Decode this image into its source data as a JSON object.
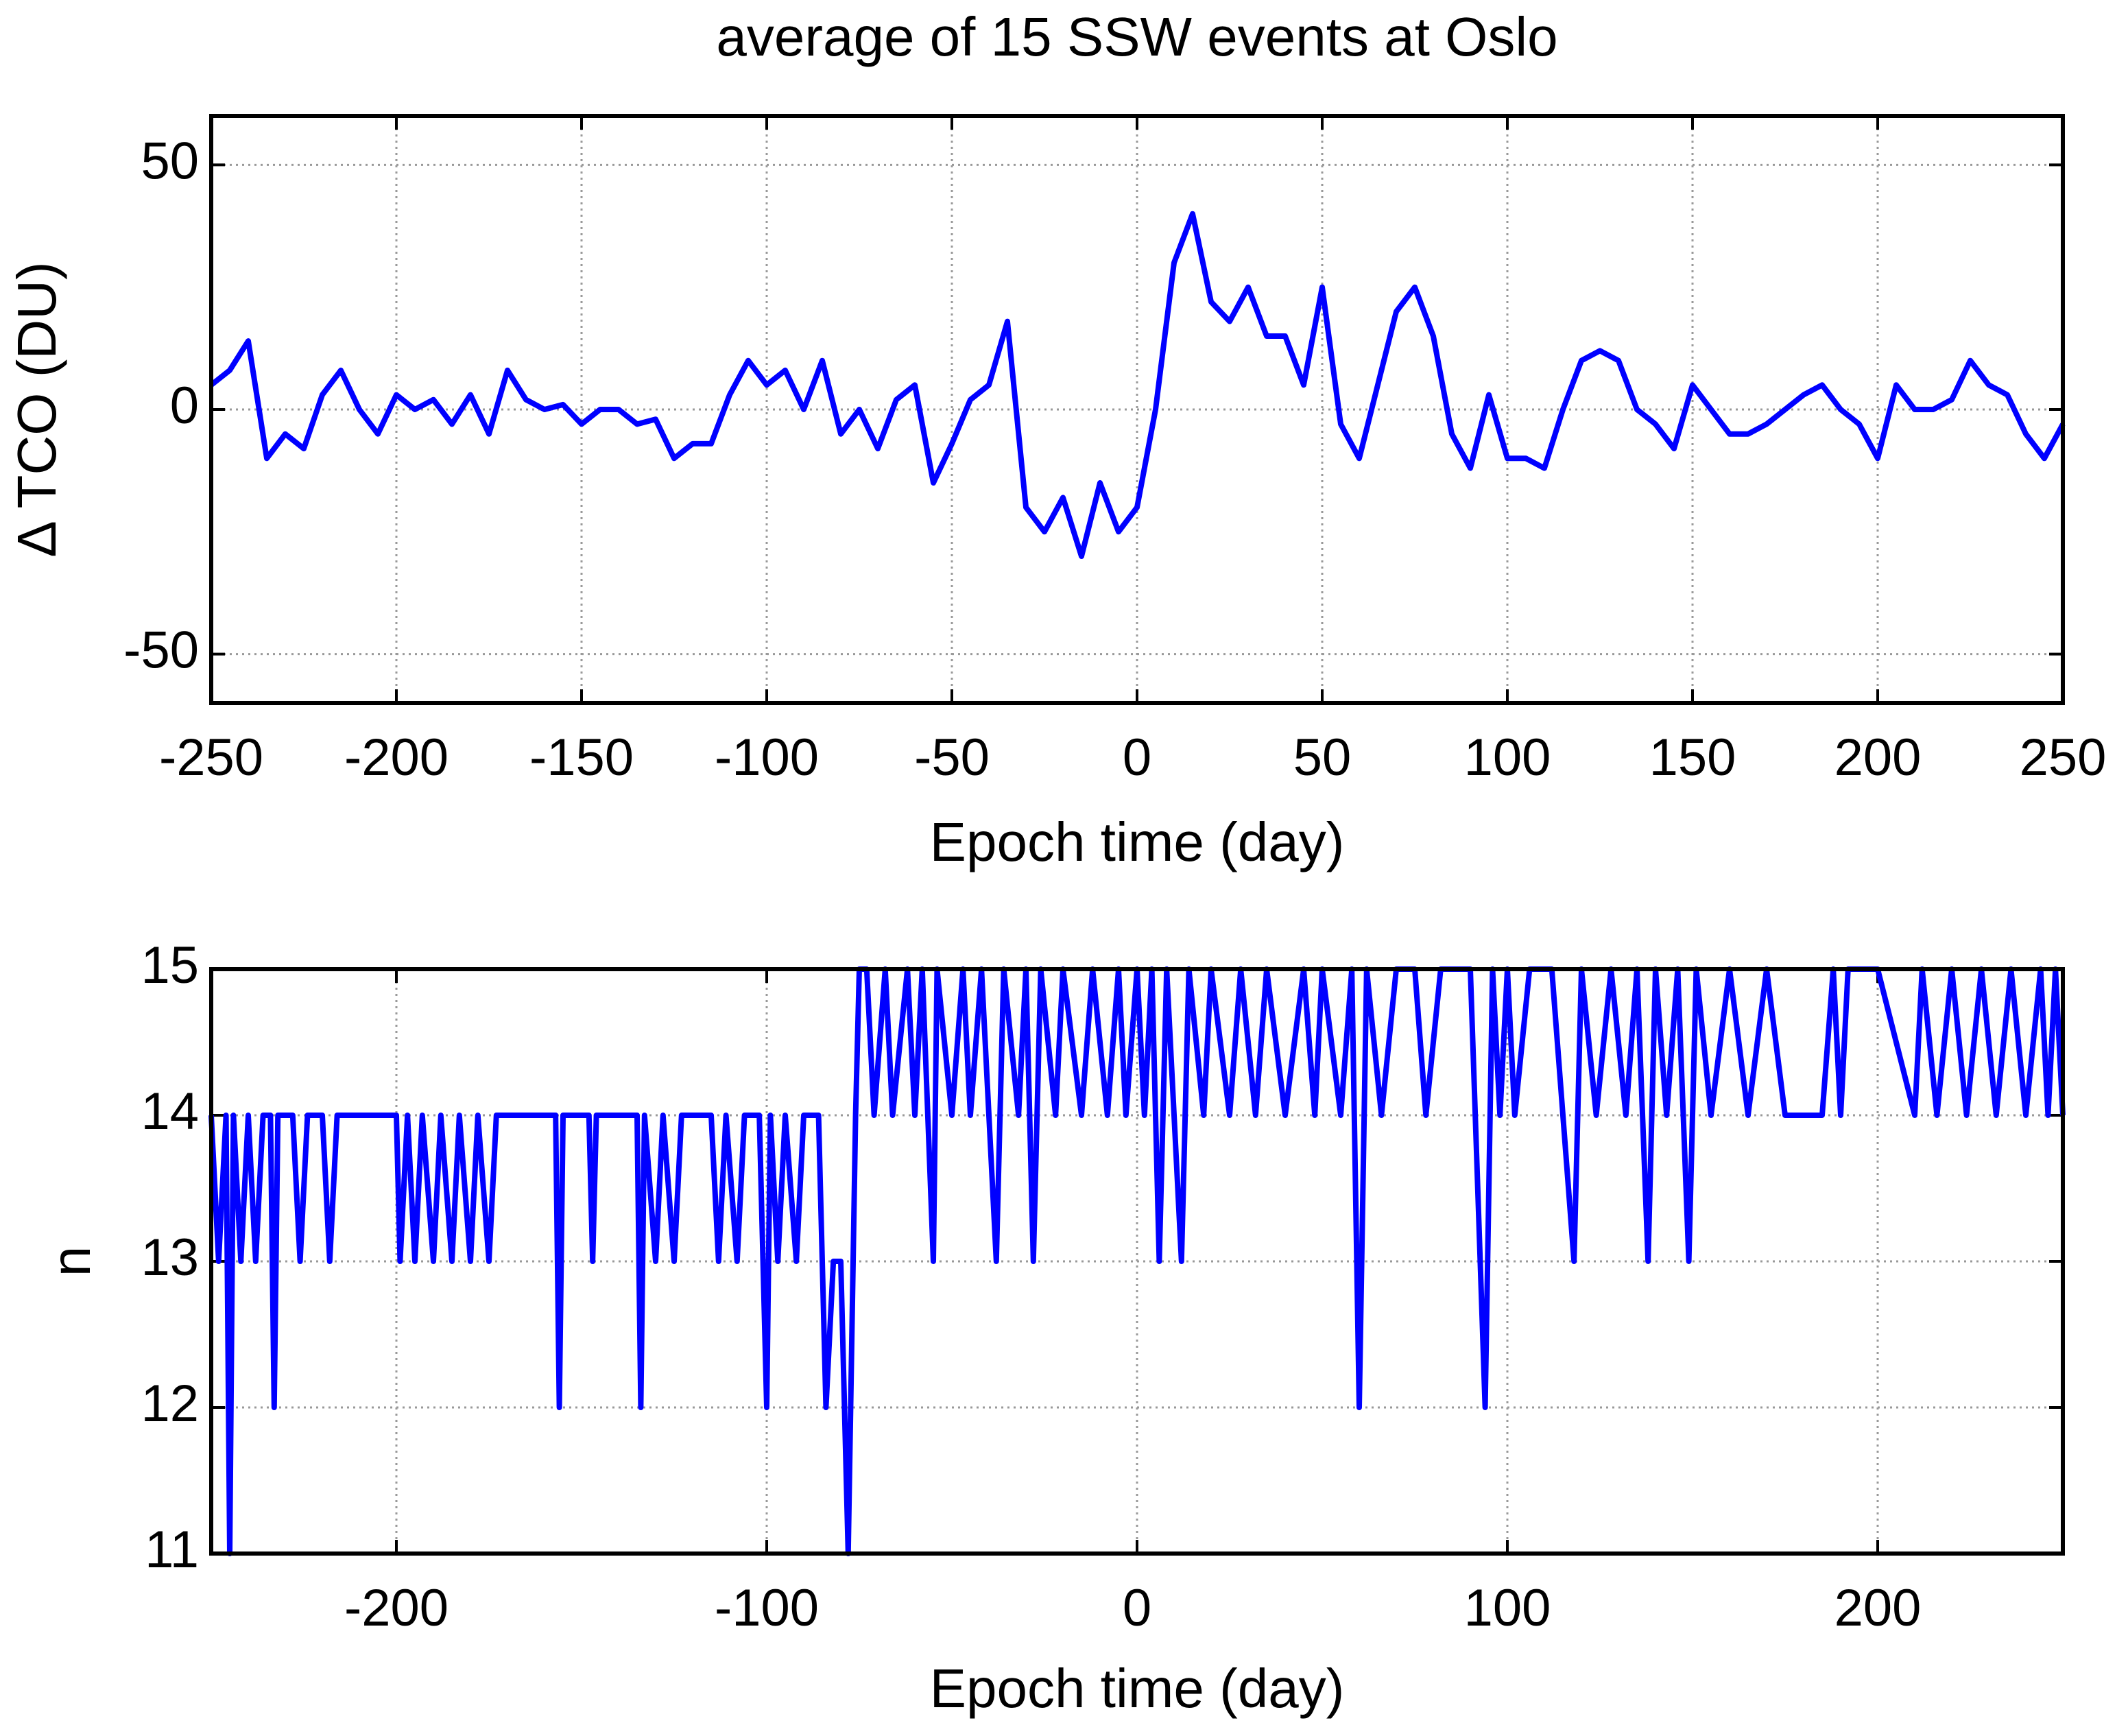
{
  "chart_data": [
    {
      "type": "line",
      "title": "average of 15 SSW events at Oslo",
      "xlabel": "Epoch time (day)",
      "ylabel": "Δ TCO (DU)",
      "xlim": [
        -250,
        250
      ],
      "ylim": [
        -60,
        60
      ],
      "xticks": [
        -250,
        -200,
        -150,
        -100,
        -50,
        0,
        50,
        100,
        150,
        200,
        250
      ],
      "yticks": [
        -50,
        0,
        50
      ],
      "grid": true,
      "series": [
        {
          "color": "#0000ff",
          "x": [
            -250,
            -245,
            -240,
            -235,
            -230,
            -225,
            -220,
            -215,
            -210,
            -205,
            -200,
            -195,
            -190,
            -185,
            -180,
            -175,
            -170,
            -165,
            -160,
            -155,
            -150,
            -145,
            -140,
            -135,
            -130,
            -125,
            -120,
            -115,
            -110,
            -105,
            -100,
            -95,
            -90,
            -85,
            -80,
            -75,
            -70,
            -65,
            -60,
            -55,
            -50,
            -45,
            -40,
            -35,
            -30,
            -25,
            -20,
            -15,
            -10,
            -5,
            0,
            5,
            10,
            15,
            20,
            25,
            30,
            35,
            40,
            45,
            50,
            55,
            60,
            65,
            70,
            75,
            80,
            85,
            90,
            95,
            100,
            105,
            110,
            115,
            120,
            125,
            130,
            135,
            140,
            145,
            150,
            155,
            160,
            165,
            170,
            175,
            180,
            185,
            190,
            195,
            200,
            205,
            210,
            215,
            220,
            225,
            230,
            235,
            240,
            245,
            250
          ],
          "values": [
            5,
            8,
            14,
            -10,
            -5,
            -8,
            3,
            8,
            0,
            -5,
            3,
            0,
            2,
            -3,
            3,
            -5,
            8,
            2,
            0,
            1,
            -3,
            0,
            0,
            -3,
            -2,
            -10,
            -7,
            -7,
            3,
            10,
            5,
            8,
            0,
            10,
            -5,
            0,
            -8,
            2,
            5,
            -15,
            -7,
            2,
            5,
            18,
            -20,
            -25,
            -18,
            -30,
            -15,
            -25,
            -20,
            0,
            30,
            40,
            22,
            18,
            25,
            15,
            15,
            5,
            25,
            -3,
            -10,
            5,
            20,
            25,
            15,
            -5,
            -12,
            3,
            -10,
            -10,
            -12,
            0,
            10,
            12,
            10,
            0,
            -3,
            -8,
            5,
            0,
            -5,
            -5,
            -3,
            0,
            3,
            5,
            0,
            -3,
            -10,
            5,
            0,
            0,
            2,
            10,
            5,
            3,
            -5,
            -10,
            -3
          ]
        }
      ]
    },
    {
      "type": "line",
      "xlabel": "Epoch time (day)",
      "ylabel": "n",
      "xlim": [
        -250,
        250
      ],
      "ylim": [
        11,
        15
      ],
      "xticks": [
        -200,
        -100,
        0,
        100,
        200
      ],
      "yticks": [
        11,
        12,
        13,
        14,
        15
      ],
      "grid": true,
      "series": [
        {
          "color": "#0000ff",
          "x": [
            -250,
            -248,
            -246,
            -245,
            -244,
            -242,
            -240,
            -238,
            -236,
            -234,
            -233,
            -232,
            -228,
            -226,
            -224,
            -220,
            -218,
            -216,
            -200,
            -199,
            -197,
            -195,
            -193,
            -190,
            -188,
            -185,
            -183,
            -180,
            -178,
            -175,
            -173,
            -157,
            -156,
            -155,
            -148,
            -147,
            -146,
            -135,
            -134,
            -133,
            -130,
            -128,
            -125,
            -123,
            -115,
            -113,
            -111,
            -108,
            -106,
            -102,
            -100,
            -99,
            -97,
            -95,
            -92,
            -90,
            -86,
            -84,
            -82,
            -80,
            -78,
            -76,
            -75,
            -73,
            -71,
            -68,
            -66,
            -62,
            -60,
            -58,
            -55,
            -54,
            -50,
            -47,
            -45,
            -42,
            -38,
            -36,
            -32,
            -30,
            -28,
            -26,
            -22,
            -20,
            -15,
            -12,
            -8,
            -5,
            -3,
            0,
            2,
            4,
            6,
            8,
            10,
            12,
            14,
            18,
            20,
            25,
            28,
            32,
            35,
            40,
            45,
            48,
            50,
            55,
            58,
            60,
            62,
            66,
            70,
            75,
            78,
            82,
            90,
            94,
            96,
            98,
            100,
            102,
            106,
            110,
            112,
            118,
            120,
            124,
            128,
            132,
            135,
            138,
            140,
            143,
            146,
            149,
            151,
            155,
            160,
            165,
            170,
            175,
            185,
            188,
            190,
            192,
            200,
            210,
            212,
            216,
            220,
            224,
            228,
            232,
            236,
            240,
            244,
            246,
            248,
            250
          ],
          "values": [
            14,
            13,
            14,
            11,
            14,
            13,
            14,
            13,
            14,
            14,
            12,
            14,
            14,
            13,
            14,
            14,
            13,
            14,
            14,
            13,
            14,
            13,
            14,
            13,
            14,
            13,
            14,
            13,
            14,
            13,
            14,
            14,
            12,
            14,
            14,
            13,
            14,
            14,
            12,
            14,
            13,
            14,
            13,
            14,
            14,
            13,
            14,
            13,
            14,
            14,
            12,
            14,
            13,
            14,
            13,
            14,
            14,
            12,
            13,
            13,
            11,
            14,
            15,
            15,
            14,
            15,
            14,
            15,
            14,
            15,
            13,
            15,
            14,
            15,
            14,
            15,
            13,
            15,
            14,
            15,
            13,
            15,
            14,
            15,
            14,
            15,
            14,
            15,
            14,
            15,
            14,
            15,
            13,
            15,
            14,
            13,
            15,
            14,
            15,
            14,
            15,
            14,
            15,
            14,
            15,
            14,
            15,
            14,
            15,
            12,
            15,
            14,
            15,
            15,
            14,
            15,
            15,
            12,
            15,
            14,
            15,
            14,
            15,
            15,
            15,
            13,
            15,
            14,
            15,
            14,
            15,
            13,
            15,
            14,
            15,
            13,
            15,
            14,
            15,
            14,
            15,
            14,
            14,
            15,
            14,
            15,
            15,
            14,
            15,
            14,
            15,
            14,
            15,
            14,
            15,
            14,
            15,
            14,
            15,
            14
          ]
        }
      ]
    }
  ]
}
